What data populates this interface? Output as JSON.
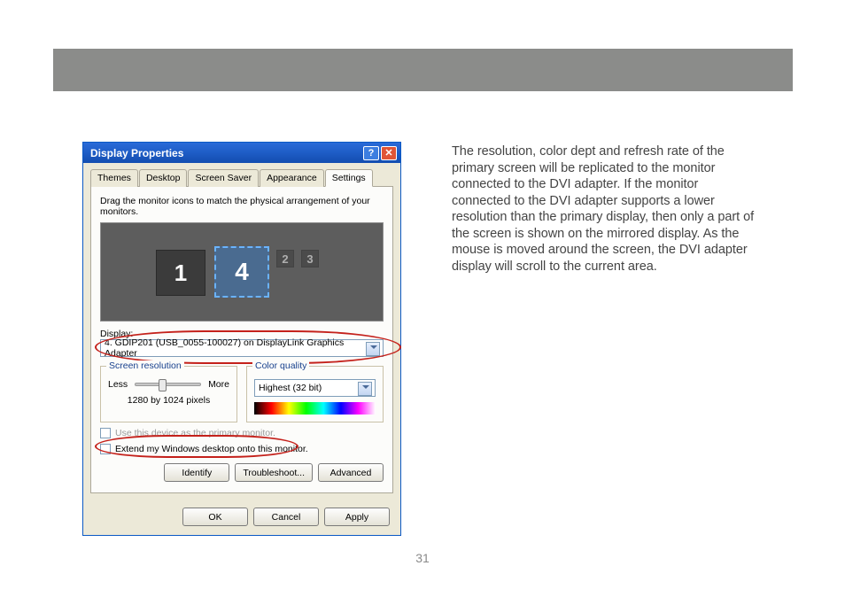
{
  "header": {
    "bar_color": "#8b8c8a"
  },
  "body_text": "The resolution, color dept and refresh rate of the primary screen will be replicated to the monitor connected to the DVI adapter. If the monitor connected to the DVI adapter supports a lower resolution than the primary display, then only a part of the screen is shown on the mirrored display. As the mouse is moved around the screen, the DVI adapter display will scroll to the current area.",
  "page_number": "31",
  "dialog": {
    "title": "Display Properties",
    "tabs": [
      "Themes",
      "Desktop",
      "Screen Saver",
      "Appearance",
      "Settings"
    ],
    "active_tab": "Settings",
    "instruction": "Drag the monitor icons to match the physical arrangement of your monitors.",
    "monitors": {
      "m1": "1",
      "m2": "2",
      "m3": "3",
      "m4": "4"
    },
    "display_label": "Display:",
    "display_value": "4. GDIP201 (USB_0055-100027) on DisplayLink Graphics Adapter",
    "resolution": {
      "legend": "Screen resolution",
      "less": "Less",
      "more": "More",
      "value": "1280 by 1024 pixels"
    },
    "color_quality": {
      "legend": "Color quality",
      "value": "Highest (32 bit)"
    },
    "cb_primary": "Use this device as the primary monitor.",
    "cb_extend": "Extend my Windows desktop onto this monitor.",
    "buttons": {
      "identify": "Identify",
      "troubleshoot": "Troubleshoot...",
      "advanced": "Advanced",
      "ok": "OK",
      "cancel": "Cancel",
      "apply": "Apply"
    },
    "highlight_color": "#c4211b"
  }
}
